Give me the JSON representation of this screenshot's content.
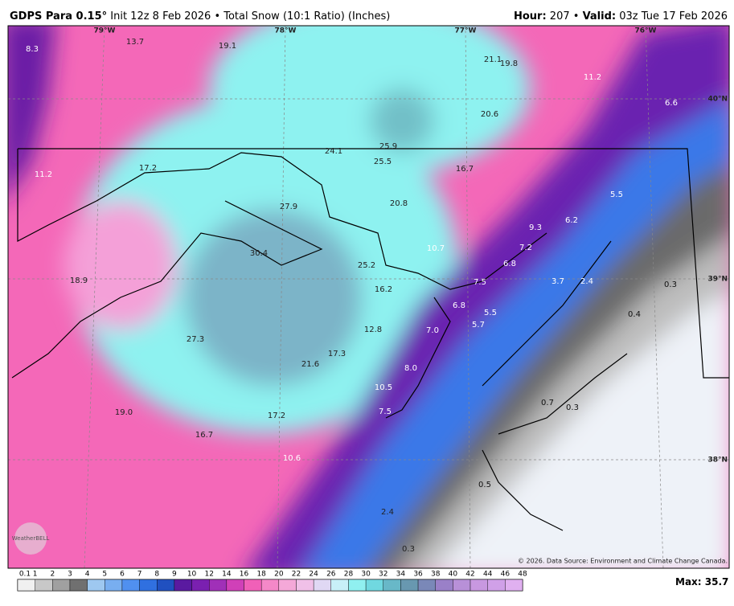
{
  "header": {
    "model": "GDPS Para 0.15°",
    "info": "Init 12z 8 Feb 2026 • Total Snow (10:1 Ratio) (Inches)",
    "hour_label": "Hour:",
    "hour_value": "207 •",
    "valid_label": "Valid:",
    "valid_value": "03z Tue 17 Feb 2026"
  },
  "longitudes": [
    "79°W",
    "78°W",
    "77°W",
    "76°W"
  ],
  "latitudes": [
    "40°N",
    "39°N",
    "38°N"
  ],
  "map_labels": [
    "8.3",
    "13.7",
    "19.1",
    "21.1",
    "19.8",
    "11.2",
    "6.6",
    "20.6",
    "24.1",
    "25.9",
    "25.5",
    "11.2",
    "17.2",
    "16.7",
    "5.5",
    "27.9",
    "20.8",
    "6.2",
    "9.3",
    "10.7",
    "7.2",
    "30.4",
    "25.2",
    "6.8",
    "18.9",
    "3.7",
    "2.4",
    "7.5",
    "0.3",
    "16.2",
    "6.8",
    "5.5",
    "0.4",
    "5.7",
    "12.8",
    "7.0",
    "27.3",
    "17.3",
    "21.6",
    "8.0",
    "10.5",
    "0.7",
    "0.3",
    "19.0",
    "7.5",
    "17.2",
    "16.7",
    "10.6",
    "0.5",
    "2.4",
    "0.3"
  ],
  "logo": "WeatherBELL",
  "credit": "© 2026. Data Source: Environment and Climate Change Canada.",
  "colorbar": {
    "ticks": [
      0.1,
      1,
      2,
      3,
      4,
      5,
      6,
      7,
      8,
      9,
      10,
      12,
      14,
      16,
      18,
      20,
      22,
      24,
      26,
      28,
      30,
      32,
      34,
      36,
      38,
      40,
      42,
      44,
      46,
      48
    ]
  },
  "max": {
    "label": "Max:",
    "value": "35.7"
  }
}
